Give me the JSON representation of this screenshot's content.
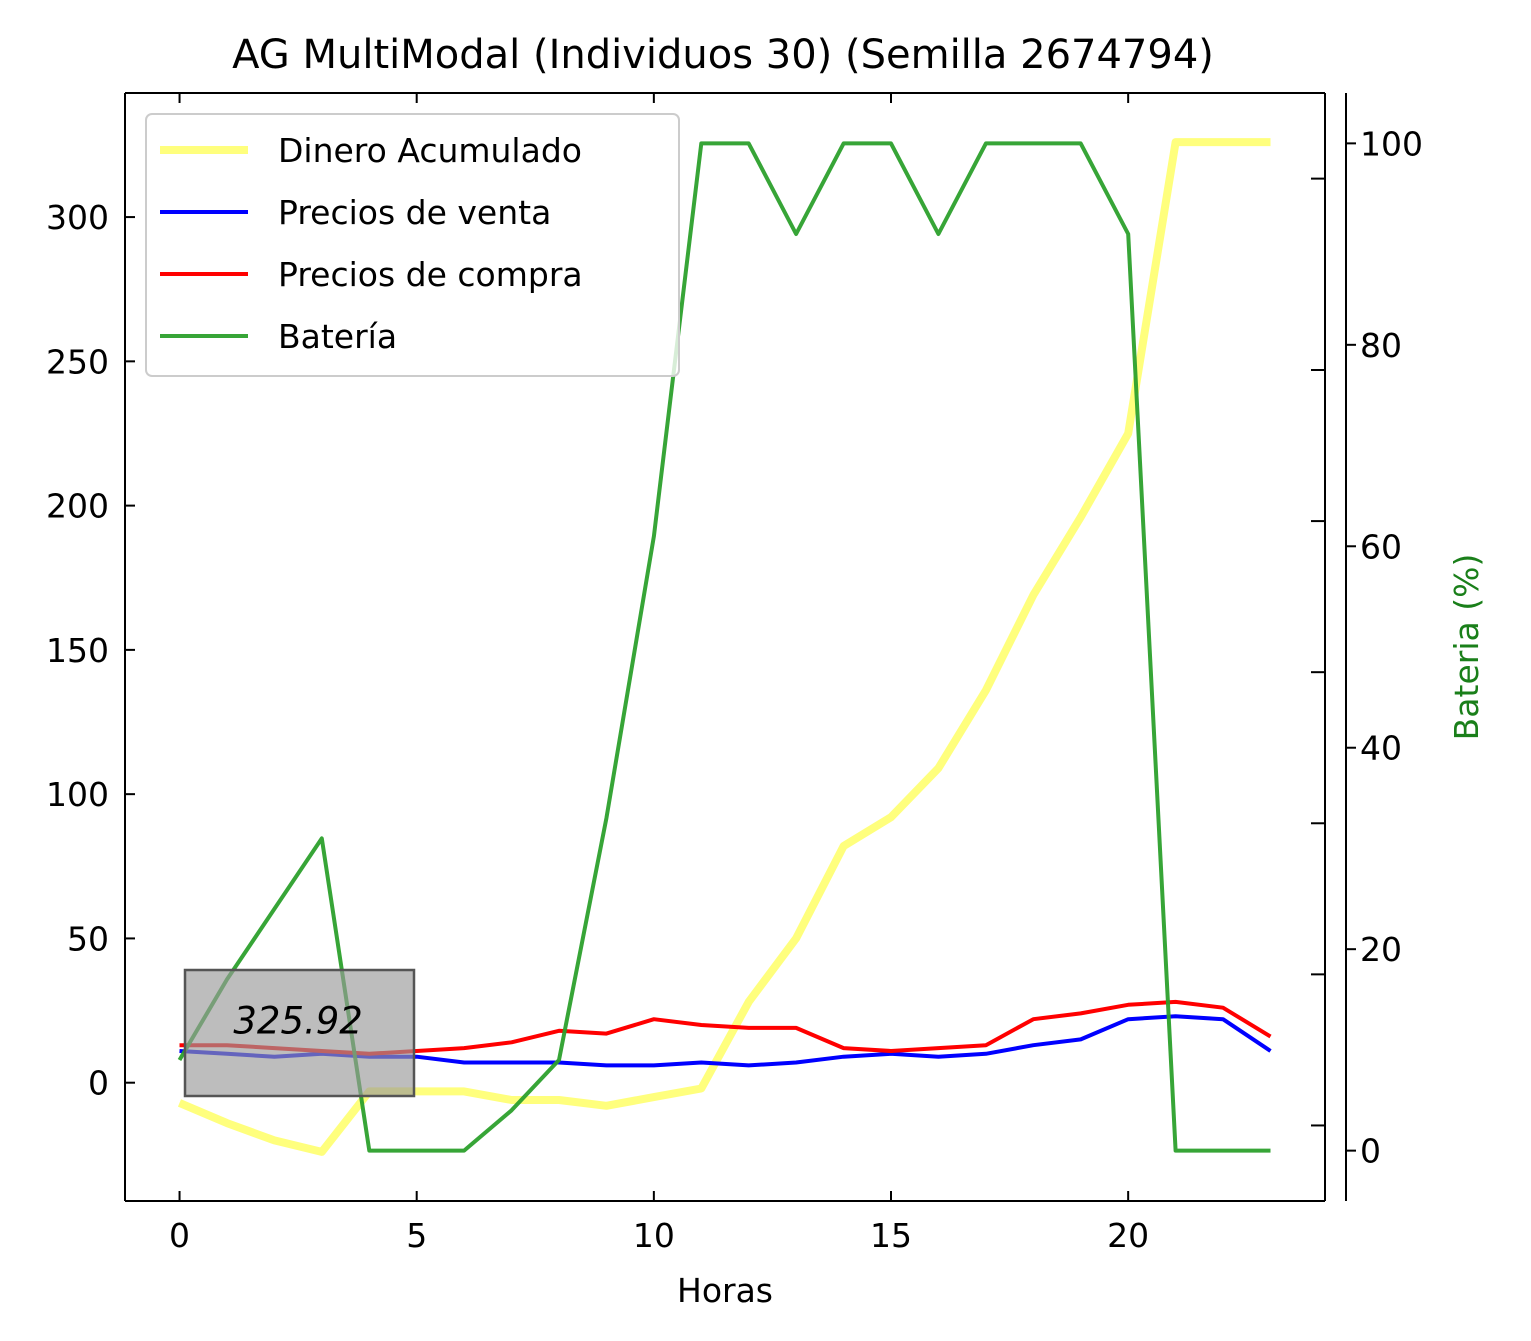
{
  "chart_data": {
    "type": "line",
    "title": "AG MultiModal (Individuos 30) (Semilla 2674794)",
    "xlabel": "Horas",
    "ylabel": "",
    "y2label": "Bateria (%)",
    "xlim": [
      -1.15,
      24.15
    ],
    "ylim": [
      -41,
      343
    ],
    "y2lim": [
      -5,
      105
    ],
    "xticks": [
      0,
      5,
      10,
      15,
      20
    ],
    "yticks": [
      0,
      50,
      100,
      150,
      200,
      250,
      300
    ],
    "y2ticks": [
      0,
      20,
      40,
      60,
      80,
      100
    ],
    "y2minor": [
      2.5,
      17.5,
      32.5,
      47.5,
      62.5,
      77.5,
      96.5
    ],
    "grid": false,
    "legend_position": "upper-left",
    "x": [
      0,
      1,
      2,
      3,
      4,
      5,
      6,
      7,
      8,
      9,
      10,
      11,
      12,
      13,
      14,
      15,
      16,
      17,
      18,
      19,
      20,
      21,
      22,
      23
    ],
    "series": [
      {
        "name": "Dinero Acumulado",
        "axis": "left",
        "color": "#ffff66",
        "values": [
          -7,
          -14,
          -20,
          -24,
          -3,
          -3,
          -3,
          -6,
          -6,
          -8,
          -5,
          -2,
          28,
          50,
          82,
          92,
          109,
          136,
          169,
          196,
          225,
          326,
          326,
          326
        ]
      },
      {
        "name": "Precios de venta",
        "axis": "left",
        "color": "#0000ff",
        "values": [
          11,
          10,
          9,
          10,
          9,
          9,
          7,
          7,
          7,
          6,
          6,
          7,
          6,
          7,
          9,
          10,
          9,
          10,
          13,
          15,
          22,
          23,
          22,
          11
        ]
      },
      {
        "name": "Precios de compra",
        "axis": "left",
        "color": "#ff0000",
        "values": [
          13,
          13,
          12,
          11,
          10,
          11,
          12,
          14,
          18,
          17,
          22,
          20,
          19,
          19,
          12,
          11,
          12,
          13,
          22,
          24,
          27,
          28,
          26,
          16
        ]
      },
      {
        "name": "Batería",
        "axis": "right",
        "color": "#2ca02c",
        "values": [
          9,
          17,
          24,
          31,
          0,
          0,
          0,
          4,
          9,
          33,
          61,
          100,
          100,
          91,
          100,
          100,
          91,
          100,
          100,
          100,
          91,
          0,
          0,
          0
        ]
      }
    ],
    "annotations": [
      {
        "text": "325.92",
        "x": 2.5,
        "y": 17,
        "box": true
      }
    ]
  }
}
